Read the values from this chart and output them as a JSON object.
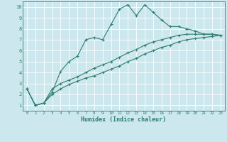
{
  "xlabel": "Humidex (Indice chaleur)",
  "bg_color": "#cce8ee",
  "grid_color": "#ffffff",
  "line_color": "#2d7d6e",
  "xlim": [
    -0.5,
    23.5
  ],
  "ylim": [
    0.5,
    10.5
  ],
  "xticks": [
    0,
    1,
    2,
    3,
    4,
    5,
    6,
    7,
    8,
    9,
    10,
    11,
    12,
    13,
    14,
    15,
    16,
    17,
    18,
    19,
    20,
    21,
    22,
    23
  ],
  "yticks": [
    1,
    2,
    3,
    4,
    5,
    6,
    7,
    8,
    9,
    10
  ],
  "line1_x": [
    0,
    1,
    2,
    3,
    4,
    5,
    6,
    7,
    8,
    9,
    10,
    11,
    12,
    13,
    14,
    15,
    16,
    17,
    18,
    19,
    20,
    21,
    22,
    23
  ],
  "line1_y": [
    2.5,
    1.0,
    1.2,
    2.2,
    4.1,
    5.0,
    5.5,
    7.0,
    7.2,
    7.0,
    8.4,
    9.8,
    10.2,
    9.2,
    10.2,
    9.5,
    8.8,
    8.2,
    8.2,
    8.0,
    7.8,
    7.5,
    7.5,
    7.4
  ],
  "line2_x": [
    0,
    1,
    2,
    3,
    4,
    5,
    6,
    7,
    8,
    9,
    10,
    11,
    12,
    13,
    14,
    15,
    16,
    17,
    18,
    19,
    20,
    21,
    22,
    23
  ],
  "line2_y": [
    2.5,
    1.0,
    1.2,
    2.0,
    2.5,
    2.9,
    3.2,
    3.5,
    3.7,
    4.0,
    4.3,
    4.6,
    5.0,
    5.3,
    5.7,
    6.0,
    6.3,
    6.5,
    6.8,
    7.0,
    7.1,
    7.2,
    7.3,
    7.4
  ],
  "line3_x": [
    0,
    1,
    2,
    3,
    4,
    5,
    6,
    7,
    8,
    9,
    10,
    11,
    12,
    13,
    14,
    15,
    16,
    17,
    18,
    19,
    20,
    21,
    22,
    23
  ],
  "line3_y": [
    2.5,
    1.0,
    1.2,
    2.5,
    3.0,
    3.3,
    3.6,
    4.0,
    4.4,
    4.7,
    5.0,
    5.4,
    5.8,
    6.1,
    6.5,
    6.8,
    7.0,
    7.2,
    7.4,
    7.5,
    7.5,
    7.5,
    7.5,
    7.4
  ]
}
